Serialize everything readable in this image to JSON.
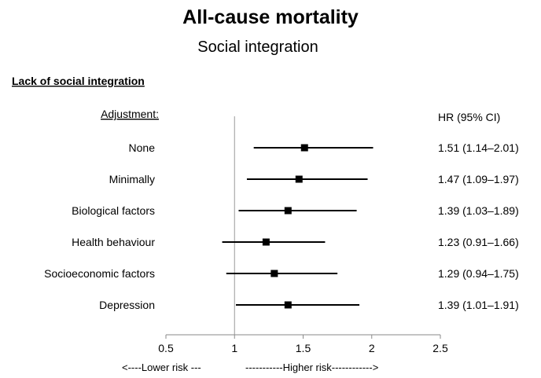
{
  "chart_data": {
    "type": "forest",
    "title": "All-cause mortality",
    "subtitle": "Social integration",
    "section_label": "Lack of social integration",
    "row_header": "Adjustment:",
    "value_header": "HR (95% CI)",
    "rows": [
      {
        "label": "None",
        "hr": 1.51,
        "lower": 1.14,
        "upper": 2.01,
        "text": "1.51 (1.14–2.01)"
      },
      {
        "label": "Minimally",
        "hr": 1.47,
        "lower": 1.09,
        "upper": 1.97,
        "text": "1.47 (1.09–1.97)"
      },
      {
        "label": "Biological factors",
        "hr": 1.39,
        "lower": 1.03,
        "upper": 1.89,
        "text": "1.39 (1.03–1.89)"
      },
      {
        "label": "Health behaviour",
        "hr": 1.23,
        "lower": 0.91,
        "upper": 1.66,
        "text": "1.23 (0.91–1.66)"
      },
      {
        "label": "Socioeconomic factors",
        "hr": 1.29,
        "lower": 0.94,
        "upper": 1.75,
        "text": "1.29 (0.94–1.75)"
      },
      {
        "label": "Depression",
        "hr": 1.39,
        "lower": 1.01,
        "upper": 1.91,
        "text": "1.39 (1.01–1.91)"
      }
    ],
    "xlim": [
      0.5,
      2.5
    ],
    "xticks": [
      0.5,
      1,
      1.5,
      2,
      2.5
    ],
    "xtick_labels": [
      "0.5",
      "1",
      "1.5",
      "2",
      "2.5"
    ],
    "reference_line": 1,
    "grid": false,
    "lower_risk_label": "<----Lower risk ---",
    "higher_risk_label": "-----------Higher risk------------>"
  }
}
